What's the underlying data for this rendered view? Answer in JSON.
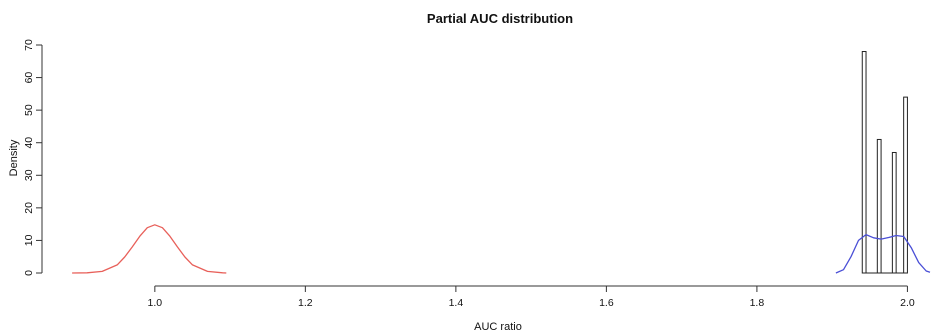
{
  "chart_data": {
    "type": "bar",
    "title": "Partial AUC distribution",
    "xlabel": "AUC ratio",
    "ylabel": "Density",
    "xlim": [
      0.87,
      2.03
    ],
    "ylim": [
      0,
      70
    ],
    "x_ticks": [
      "1.0",
      "1.2",
      "1.4",
      "1.6",
      "1.8",
      "2.0"
    ],
    "y_ticks": [
      "0",
      "10",
      "20",
      "30",
      "40",
      "50",
      "60",
      "70"
    ],
    "histogram": {
      "bins": [
        {
          "x0": 1.94,
          "x1": 1.945,
          "density": 68
        },
        {
          "x0": 1.96,
          "x1": 1.965,
          "density": 41
        },
        {
          "x0": 1.98,
          "x1": 1.985,
          "density": 37
        },
        {
          "x0": 1.995,
          "x1": 2.0,
          "density": 54
        }
      ],
      "fill": "#ffffff",
      "stroke": "#222222"
    },
    "series": [
      {
        "type": "line",
        "color": "#e8605a",
        "x": [
          0.89,
          0.91,
          0.93,
          0.95,
          0.96,
          0.97,
          0.98,
          0.99,
          1.0,
          1.01,
          1.02,
          1.03,
          1.04,
          1.05,
          1.07,
          1.09,
          1.095
        ],
        "y": [
          0.0,
          0.05,
          0.5,
          2.5,
          4.9,
          8.0,
          11.3,
          13.9,
          14.8,
          13.9,
          11.3,
          8.0,
          4.9,
          2.5,
          0.5,
          0.05,
          0.0
        ]
      },
      {
        "type": "line",
        "color": "#4a4fd6",
        "x": [
          1.905,
          1.915,
          1.925,
          1.935,
          1.945,
          1.955,
          1.965,
          1.975,
          1.985,
          1.995,
          2.005,
          2.015,
          2.025,
          2.03
        ],
        "y": [
          0.0,
          1.0,
          5.0,
          10.0,
          11.8,
          10.8,
          10.4,
          10.9,
          11.5,
          11.2,
          7.8,
          3.2,
          0.6,
          0.2
        ]
      }
    ]
  }
}
